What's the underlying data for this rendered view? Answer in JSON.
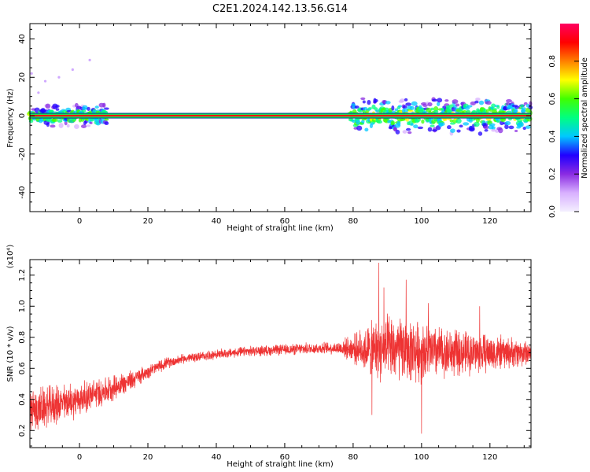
{
  "title": "C2E1.2024.142.13.56.G14",
  "chart_data": [
    {
      "type": "heatmap",
      "title": "C2E1.2024.142.13.56.G14",
      "xlabel": "Height of straight line (km)",
      "ylabel": "Frequency (Hz)",
      "xlim": [
        -14.5,
        132
      ],
      "ylim": [
        -50,
        48
      ],
      "xticks": [
        0,
        20,
        40,
        60,
        80,
        100,
        120
      ],
      "yticks": [
        -40,
        -20,
        0,
        20,
        40
      ],
      "colorbar": {
        "label": "Normalized spectral amplitude",
        "range": [
          0,
          1
        ],
        "ticks": [
          0.0,
          0.2,
          0.4,
          0.6,
          0.8
        ],
        "colors": [
          "#f4f0ff",
          "#d8b0ff",
          "#8a2be2",
          "#2000ff",
          "#00c8ff",
          "#00ff80",
          "#40ff00",
          "#ffff00",
          "#ff8000",
          "#ff0000",
          "#ff0060"
        ]
      },
      "features": [
        {
          "name": "carrier",
          "x_range": [
            -14.5,
            132
          ],
          "freq_hz": 0
        },
        {
          "name": "broadband",
          "x_range": [
            -14.5,
            8
          ],
          "freq_spread_hz": [
            -6,
            6
          ]
        },
        {
          "name": "broadband",
          "x_range": [
            79,
            132
          ],
          "freq_spread_hz": [
            -10,
            10
          ]
        },
        {
          "name": "scattered",
          "points": [
            [
              -14,
              22
            ],
            [
              -10,
              18
            ],
            [
              -6,
              20
            ],
            [
              -2,
              24
            ],
            [
              3,
              29
            ],
            [
              -12,
              12
            ]
          ]
        }
      ]
    },
    {
      "type": "line",
      "xlabel": "Height of straight line (km)",
      "ylabel": "SNR (10 * v/v)",
      "y_multiplier": "(x10⁴)",
      "xlim": [
        -14.5,
        132
      ],
      "ylim": [
        0.09,
        1.3
      ],
      "xticks": [
        0,
        20,
        40,
        60,
        80,
        100,
        120
      ],
      "yticks": [
        0.2,
        0.4,
        0.6,
        0.8,
        1.0,
        1.2
      ],
      "color": "#ee3333",
      "trend": [
        [
          -14.5,
          0.32
        ],
        [
          -8,
          0.36
        ],
        [
          0,
          0.4
        ],
        [
          8,
          0.46
        ],
        [
          15,
          0.52
        ],
        [
          20,
          0.58
        ],
        [
          25,
          0.63
        ],
        [
          30,
          0.66
        ],
        [
          40,
          0.69
        ],
        [
          50,
          0.71
        ],
        [
          60,
          0.72
        ],
        [
          70,
          0.73
        ],
        [
          78,
          0.73
        ],
        [
          85,
          0.72
        ],
        [
          92,
          0.72
        ],
        [
          100,
          0.71
        ],
        [
          110,
          0.7
        ],
        [
          120,
          0.7
        ],
        [
          132,
          0.7
        ]
      ],
      "amplitude": [
        [
          -14.5,
          0.16
        ],
        [
          -5,
          0.14
        ],
        [
          5,
          0.11
        ],
        [
          12,
          0.09
        ],
        [
          20,
          0.05
        ],
        [
          30,
          0.035
        ],
        [
          40,
          0.035
        ],
        [
          60,
          0.04
        ],
        [
          75,
          0.045
        ],
        [
          80,
          0.1
        ],
        [
          85,
          0.2
        ],
        [
          90,
          0.25
        ],
        [
          100,
          0.22
        ],
        [
          110,
          0.17
        ],
        [
          120,
          0.14
        ],
        [
          132,
          0.09
        ]
      ],
      "peaks": [
        [
          87.5,
          1.28
        ],
        [
          89,
          1.12
        ],
        [
          95.5,
          1.17
        ],
        [
          100,
          0.18
        ],
        [
          85.5,
          0.3
        ],
        [
          102,
          1.02
        ],
        [
          117,
          1.0
        ]
      ]
    }
  ]
}
